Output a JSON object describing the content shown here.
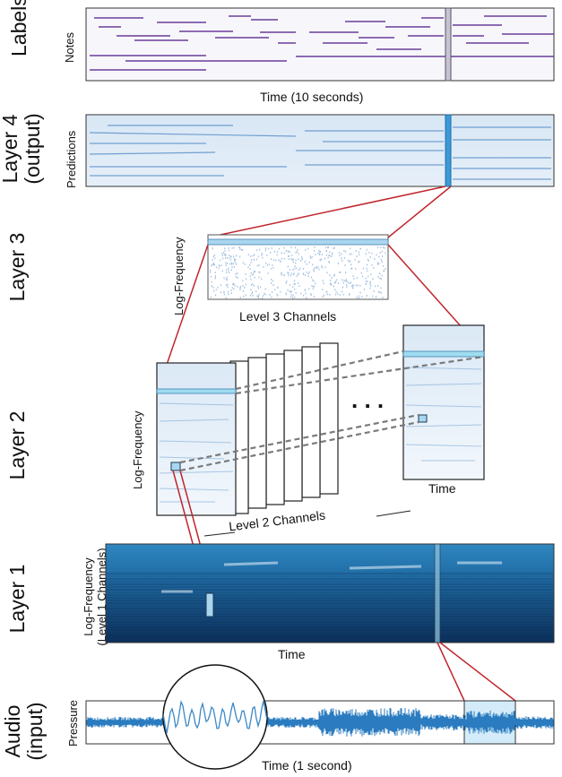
{
  "layers": {
    "labels": "Labels",
    "layer4": "Layer 4\n(output)",
    "layer3": "Layer 3",
    "layer2": "Layer 2",
    "layer1": "Layer 1",
    "audio": "Audio\n(input)"
  },
  "axes": {
    "notes": "Notes",
    "time_10s": "Time (10 seconds)",
    "predictions": "Predictions",
    "logfreq": "Log-Frequency",
    "level3_channels": "Level 3 Channels",
    "time": "Time",
    "level2_channels": "Level 2 Channels",
    "logfreq_level1": "Log-Frequency\n(Level 1 Channels)",
    "pressure": "Pressure",
    "time_1s": "Time (1 second)"
  },
  "ellipsis": ". . .",
  "colors": {
    "note": "#6a3d9a",
    "highlight": "#6ec6e8",
    "connector": "#c0262d",
    "spectrogram": "#1c5f93",
    "waveform": "#2a7bbf"
  }
}
